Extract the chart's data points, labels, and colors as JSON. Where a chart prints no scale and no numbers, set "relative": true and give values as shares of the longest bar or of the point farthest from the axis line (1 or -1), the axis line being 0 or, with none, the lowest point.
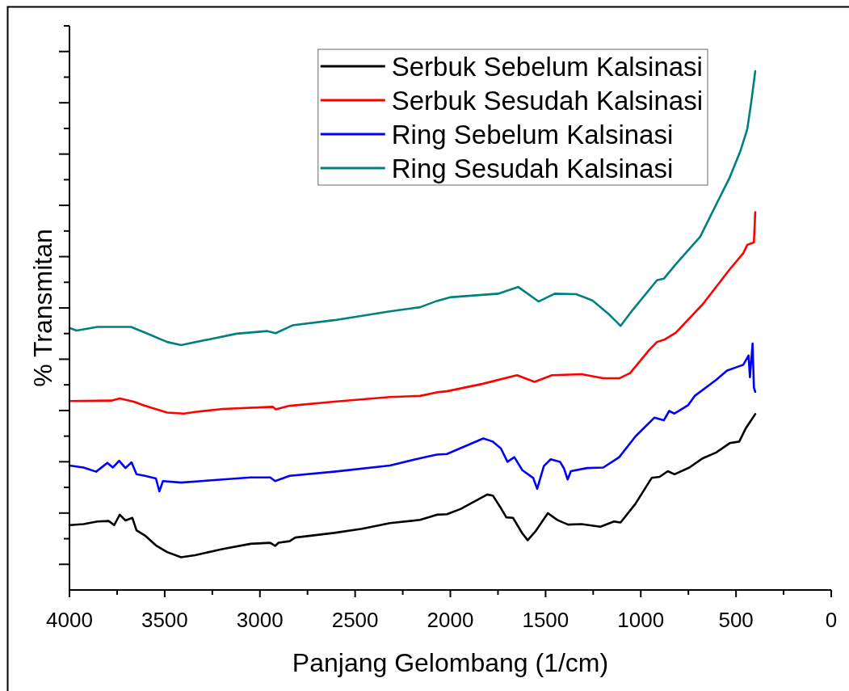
{
  "chart_data": {
    "type": "line",
    "xlabel": "Panjang Gelombang (1/cm)",
    "ylabel": "% Transmitan",
    "relative": true,
    "legend": "top right",
    "xlim": [
      4000,
      0
    ],
    "xticks": [
      4000,
      {
        "value": 3750,
        "label": null
      },
      3500,
      {
        "value": 3250,
        "label": null
      },
      3000,
      {
        "value": 2750,
        "label": null
      },
      2500,
      {
        "value": 2250,
        "label": null
      },
      2000,
      {
        "value": 1750,
        "label": null
      },
      1500,
      {
        "value": 1250,
        "label": null
      },
      1000,
      {
        "value": 750,
        "label": null
      },
      500,
      {
        "value": 250,
        "label": null
      },
      0
    ],
    "series": [
      {
        "name": "Serbuk Sebelum Kalsinasi",
        "color": "#000000",
        "x": [
          4000,
          3926,
          3853,
          3794,
          3765,
          3736,
          3706,
          3670,
          3648,
          3604,
          3546,
          3487,
          3414,
          3341,
          3194,
          3049,
          2946,
          2920,
          2902,
          2844,
          2814,
          2610,
          2463,
          2317,
          2159,
          2071,
          2018,
          1947,
          1806,
          1777,
          1735,
          1706,
          1671,
          1622,
          1594,
          1551,
          1488,
          1438,
          1382,
          1311,
          1212,
          1141,
          1106,
          1028,
          943,
          901,
          858,
          823,
          745,
          674,
          604,
          533,
          483,
          448,
          399
        ],
        "values": [
          0.125,
          0.127,
          0.132,
          0.133,
          0.125,
          0.145,
          0.134,
          0.139,
          0.115,
          0.105,
          0.086,
          0.073,
          0.063,
          0.067,
          0.079,
          0.089,
          0.091,
          0.085,
          0.091,
          0.094,
          0.101,
          0.11,
          0.118,
          0.129,
          0.135,
          0.145,
          0.146,
          0.156,
          0.184,
          0.182,
          0.158,
          0.14,
          0.139,
          0.109,
          0.096,
          0.114,
          0.148,
          0.135,
          0.126,
          0.127,
          0.122,
          0.132,
          0.13,
          0.166,
          0.216,
          0.218,
          0.229,
          0.223,
          0.236,
          0.254,
          0.265,
          0.283,
          0.286,
          0.312,
          0.339
        ]
      },
      {
        "name": "Serbuk Sesudah Kalsinasi",
        "color": "#ff0000",
        "x": [
          4000,
          3780,
          3736,
          3663,
          3604,
          3487,
          3399,
          3341,
          3194,
          2932,
          2917,
          2844,
          2610,
          2317,
          2159,
          2071,
          2018,
          1834,
          1650,
          1558,
          1466,
          1311,
          1197,
          1113,
          1056,
          957,
          915,
          873,
          816,
          674,
          533,
          462,
          441,
          406,
          399
        ],
        "values": [
          0.364,
          0.365,
          0.369,
          0.363,
          0.355,
          0.342,
          0.34,
          0.343,
          0.349,
          0.353,
          0.348,
          0.355,
          0.363,
          0.372,
          0.374,
          0.381,
          0.383,
          0.397,
          0.414,
          0.401,
          0.414,
          0.416,
          0.408,
          0.408,
          0.418,
          0.462,
          0.478,
          0.483,
          0.496,
          0.551,
          0.618,
          0.649,
          0.665,
          0.67,
          0.728
        ]
      },
      {
        "name": "Ring Sebelum Kalsinasi",
        "color": "#0000ff",
        "x": [
          4000,
          3926,
          3860,
          3801,
          3772,
          3739,
          3706,
          3674,
          3648,
          3604,
          3546,
          3528,
          3509,
          3414,
          3268,
          3049,
          2946,
          2920,
          2844,
          2610,
          2317,
          2159,
          2071,
          2018,
          1827,
          1777,
          1735,
          1700,
          1664,
          1622,
          1565,
          1544,
          1509,
          1473,
          1424,
          1403,
          1384,
          1367,
          1282,
          1197,
          1113,
          1028,
          929,
          879,
          851,
          823,
          752,
          717,
          604,
          547,
          462,
          434,
          427,
          413,
          406,
          399
        ],
        "values": [
          0.24,
          0.236,
          0.228,
          0.245,
          0.236,
          0.249,
          0.235,
          0.246,
          0.223,
          0.22,
          0.215,
          0.19,
          0.21,
          0.207,
          0.211,
          0.217,
          0.217,
          0.21,
          0.22,
          0.228,
          0.24,
          0.254,
          0.261,
          0.262,
          0.292,
          0.286,
          0.273,
          0.247,
          0.256,
          0.231,
          0.216,
          0.195,
          0.239,
          0.252,
          0.247,
          0.234,
          0.213,
          0.229,
          0.235,
          0.236,
          0.256,
          0.296,
          0.332,
          0.327,
          0.345,
          0.34,
          0.356,
          0.374,
          0.405,
          0.423,
          0.434,
          0.452,
          0.41,
          0.475,
          0.39,
          0.382
        ]
      },
      {
        "name": "Ring Sesudah Kalsinasi",
        "color": "#008080",
        "x": [
          4000,
          3963,
          3853,
          3736,
          3677,
          3604,
          3487,
          3414,
          3268,
          3122,
          2961,
          2917,
          2829,
          2610,
          2317,
          2159,
          2071,
          2003,
          1749,
          1643,
          1537,
          1452,
          1339,
          1254,
          1169,
          1106,
          1042,
          915,
          879,
          816,
          688,
          604,
          533,
          476,
          441,
          420,
          399
        ],
        "values": [
          0.505,
          0.5,
          0.507,
          0.507,
          0.507,
          0.496,
          0.478,
          0.472,
          0.483,
          0.494,
          0.499,
          0.495,
          0.51,
          0.52,
          0.537,
          0.545,
          0.557,
          0.564,
          0.571,
          0.584,
          0.556,
          0.571,
          0.57,
          0.558,
          0.532,
          0.509,
          0.54,
          0.597,
          0.6,
          0.628,
          0.681,
          0.743,
          0.795,
          0.847,
          0.888,
          0.94,
          1
        ]
      }
    ]
  }
}
